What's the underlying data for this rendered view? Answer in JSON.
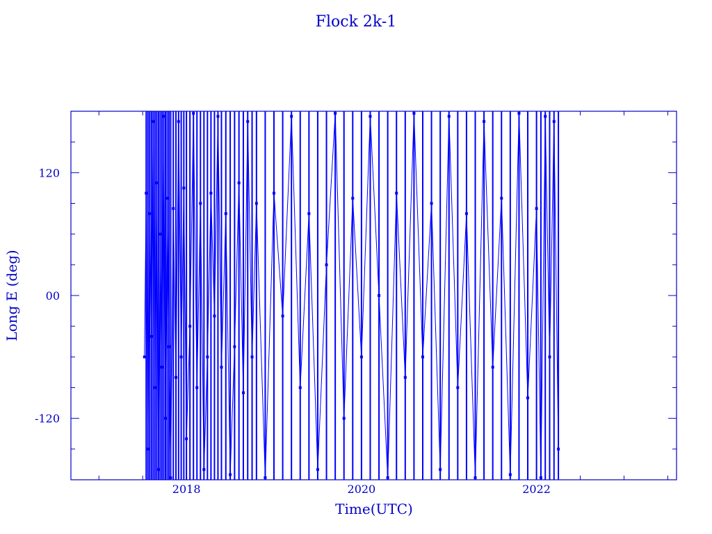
{
  "chart_data": {
    "type": "line",
    "title": "Flock 2k-1",
    "xlabel": "Time(UTC)",
    "ylabel": "Long E (deg)",
    "xlim": [
      2016.68,
      2023.6
    ],
    "ylim": [
      -180,
      180
    ],
    "xticks": [
      2018,
      2020,
      2022
    ],
    "xtick_labels": [
      "2018",
      "2020",
      "2022"
    ],
    "yticks": [
      120,
      0,
      -120
    ],
    "ytick_labels": [
      "120",
      "00",
      "-120"
    ],
    "grid": false,
    "colors": {
      "axis": "#0000c8",
      "series": "#0000ff"
    },
    "series": [
      {
        "markers": true,
        "points": [
          [
            2017.52,
            -60
          ],
          [
            2017.54,
            100
          ],
          [
            2017.56,
            -150
          ],
          [
            2017.58,
            80
          ],
          [
            2017.6,
            -40
          ],
          [
            2017.62,
            170
          ],
          [
            2017.64,
            -90
          ],
          [
            2017.66,
            110
          ],
          [
            2017.68,
            -170
          ],
          [
            2017.7,
            60
          ],
          [
            2017.72,
            -70
          ],
          [
            2017.74,
            175
          ],
          [
            2017.76,
            -120
          ],
          [
            2017.78,
            95
          ],
          [
            2017.8,
            -50
          ],
          [
            2017.82,
            -178
          ],
          [
            2017.85,
            85
          ],
          [
            2017.88,
            -80
          ],
          [
            2017.91,
            170
          ],
          [
            2017.94,
            -60
          ],
          [
            2017.97,
            105
          ],
          [
            2018.0,
            -140
          ],
          [
            2018.04,
            -30
          ],
          [
            2018.08,
            178
          ],
          [
            2018.12,
            -90
          ],
          [
            2018.16,
            90
          ],
          [
            2018.2,
            -170
          ],
          [
            2018.24,
            -60
          ],
          [
            2018.28,
            100
          ],
          [
            2018.32,
            -20
          ],
          [
            2018.36,
            175
          ],
          [
            2018.4,
            -70
          ],
          [
            2018.45,
            80
          ],
          [
            2018.5,
            -175
          ],
          [
            2018.55,
            -50
          ],
          [
            2018.6,
            110
          ],
          [
            2018.65,
            -95
          ],
          [
            2018.7,
            170
          ],
          [
            2018.75,
            -60
          ],
          [
            2018.8,
            90
          ],
          [
            2018.9,
            -178
          ],
          [
            2019.0,
            100
          ],
          [
            2019.1,
            -20
          ],
          [
            2019.2,
            175
          ],
          [
            2019.3,
            -90
          ],
          [
            2019.4,
            80
          ],
          [
            2019.5,
            -170
          ],
          [
            2019.6,
            30
          ],
          [
            2019.7,
            178
          ],
          [
            2019.8,
            -120
          ],
          [
            2019.9,
            95
          ],
          [
            2020.0,
            -60
          ],
          [
            2020.1,
            175
          ],
          [
            2020.2,
            0
          ],
          [
            2020.3,
            -178
          ],
          [
            2020.4,
            100
          ],
          [
            2020.5,
            -80
          ],
          [
            2020.6,
            178
          ],
          [
            2020.7,
            -60
          ],
          [
            2020.8,
            90
          ],
          [
            2020.9,
            -170
          ],
          [
            2021.0,
            175
          ],
          [
            2021.1,
            -90
          ],
          [
            2021.2,
            80
          ],
          [
            2021.3,
            -178
          ],
          [
            2021.4,
            170
          ],
          [
            2021.5,
            -70
          ],
          [
            2021.6,
            95
          ],
          [
            2021.7,
            -175
          ],
          [
            2021.8,
            178
          ],
          [
            2021.9,
            -100
          ],
          [
            2022.0,
            85
          ],
          [
            2022.05,
            -178
          ],
          [
            2022.1,
            175
          ],
          [
            2022.15,
            -60
          ],
          [
            2022.2,
            170
          ],
          [
            2022.25,
            -150
          ]
        ]
      }
    ]
  }
}
